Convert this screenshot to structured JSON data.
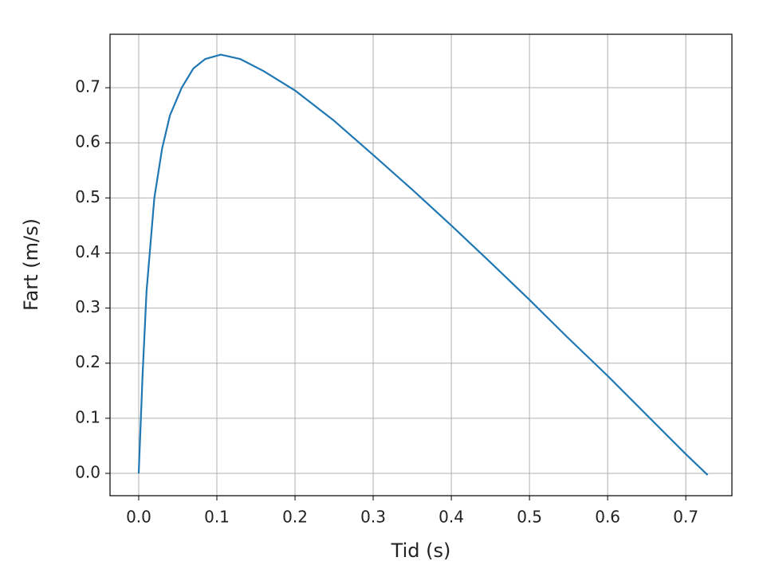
{
  "chart_data": {
    "type": "line",
    "x_label": "Tid (s)",
    "y_label": "Fart (m/s)",
    "x": [
      0,
      0.005,
      0.01,
      0.02,
      0.03,
      0.04,
      0.055,
      0.07,
      0.085,
      0.105,
      0.13,
      0.16,
      0.2,
      0.25,
      0.3,
      0.35,
      0.4,
      0.45,
      0.5,
      0.55,
      0.6,
      0.65,
      0.7,
      0.728
    ],
    "series": [
      {
        "color": "#1f77b4",
        "values": [
          0,
          0.18,
          0.33,
          0.5,
          0.59,
          0.65,
          0.7,
          0.735,
          0.752,
          0.76,
          0.752,
          0.73,
          0.695,
          0.64,
          0.578,
          0.515,
          0.45,
          0.383,
          0.315,
          0.245,
          0.177,
          0.106,
          0.035,
          -0.003
        ]
      }
    ],
    "xlim": [
      -0.0367,
      0.759
    ],
    "ylim": [
      -0.0405,
      0.797
    ],
    "xticks": [
      {
        "value": 0,
        "label": "0.0"
      },
      0.1,
      0.2,
      0.3,
      0.4,
      0.5,
      0.6,
      0.7
    ],
    "yticks": [
      {
        "value": 0,
        "label": "0.0"
      },
      0.1,
      0.2,
      0.3,
      0.4,
      0.5,
      0.6,
      0.7
    ],
    "grid": true
  }
}
